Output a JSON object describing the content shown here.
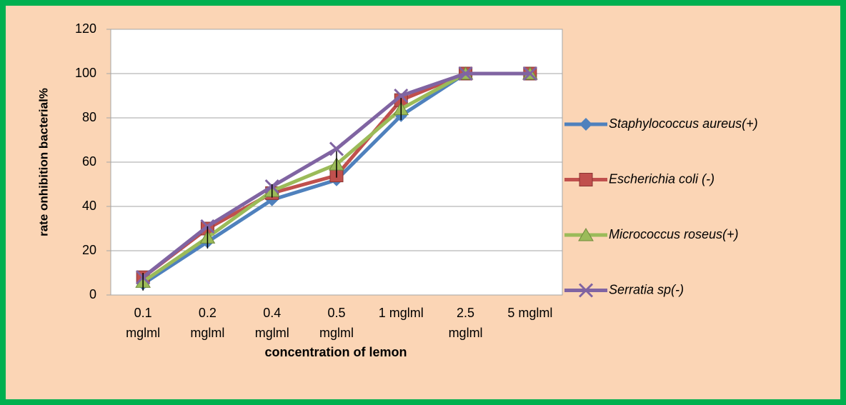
{
  "chart_data": {
    "type": "line",
    "xlabel": "concentration of lemon",
    "ylabel": "rate onhibition bacterial%",
    "categories": [
      "0.1 mglml",
      "0.2 mglml",
      "0.4 mglml",
      "0.5 mglml",
      "1 mglml",
      "2.5 mglml",
      "5 mglml"
    ],
    "series": [
      {
        "name": "Staphylococcus aureus(+)",
        "color": "#4f81bd",
        "marker": "diamond",
        "values": [
          5,
          24,
          43,
          52,
          81,
          100,
          100
        ]
      },
      {
        "name": "Escherichia coli  (-)",
        "color": "#c0504d",
        "marker": "square",
        "values": [
          8,
          30,
          46,
          54,
          88,
          100,
          100
        ]
      },
      {
        "name": "Micrococcus roseus(+)",
        "color": "#9bbb59",
        "marker": "triangle",
        "values": [
          6,
          26,
          47,
          59,
          84,
          100,
          100
        ],
        "errors": [
          4,
          5,
          3,
          6,
          5,
          0,
          0
        ]
      },
      {
        "name": "Serratia sp(-)",
        "color": "#8064a2",
        "marker": "x",
        "values": [
          8,
          31,
          49,
          66,
          90,
          100,
          100
        ]
      }
    ],
    "ylim": [
      0,
      120
    ],
    "yticks": [
      0,
      20,
      40,
      60,
      80,
      100,
      120
    ],
    "grid": true,
    "legend": "right"
  }
}
